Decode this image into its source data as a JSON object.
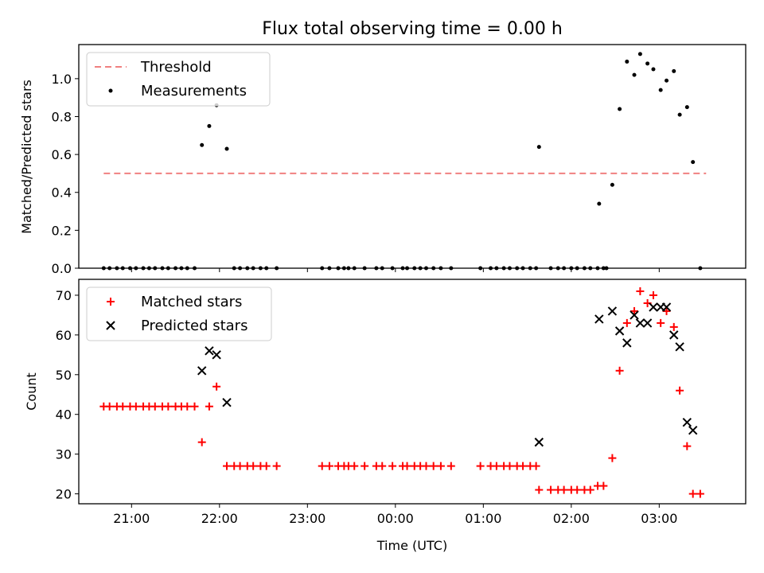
{
  "chart_data": [
    {
      "type": "scatter",
      "title": "Flux total observing time = 0.00 h",
      "xlabel": "",
      "ylabel": "Matched/Predicted stars",
      "xlim": [
        "20:24",
        "03:59"
      ],
      "ylim": [
        0,
        1.18
      ],
      "yticks": [
        "0.0",
        "0.2",
        "0.4",
        "0.6",
        "0.8",
        "1.0"
      ],
      "legend_position": "top-left",
      "threshold": {
        "name": "Threshold",
        "value": 0.5,
        "x_start": "20:41",
        "x_end": "03:32",
        "color": "#f08080",
        "style": "dashed"
      },
      "series": [
        {
          "name": "Measurements",
          "color": "#000000",
          "marker": "dot",
          "points": [
            [
              "20:41",
              0
            ],
            [
              "20:45",
              0
            ],
            [
              "20:50",
              0
            ],
            [
              "20:54",
              0
            ],
            [
              "20:59",
              0
            ],
            [
              "21:03",
              0
            ],
            [
              "21:08",
              0
            ],
            [
              "21:12",
              0
            ],
            [
              "21:16",
              0
            ],
            [
              "21:21",
              0
            ],
            [
              "21:25",
              0
            ],
            [
              "21:30",
              0
            ],
            [
              "21:34",
              0
            ],
            [
              "21:38",
              0
            ],
            [
              "21:43",
              0
            ],
            [
              "21:48",
              0.65
            ],
            [
              "21:53",
              0.75
            ],
            [
              "21:58",
              0.86
            ],
            [
              "22:05",
              0.63
            ],
            [
              "22:10",
              0
            ],
            [
              "22:14",
              0
            ],
            [
              "22:19",
              0
            ],
            [
              "22:23",
              0
            ],
            [
              "22:28",
              0
            ],
            [
              "22:32",
              0
            ],
            [
              "22:39",
              0
            ],
            [
              "23:10",
              0
            ],
            [
              "23:15",
              0
            ],
            [
              "23:21",
              0
            ],
            [
              "23:25",
              0
            ],
            [
              "23:28",
              0
            ],
            [
              "23:32",
              0
            ],
            [
              "23:39",
              0
            ],
            [
              "23:47",
              0
            ],
            [
              "23:51",
              0
            ],
            [
              "23:58",
              0
            ],
            [
              "00:05",
              0
            ],
            [
              "00:08",
              0
            ],
            [
              "00:13",
              0
            ],
            [
              "00:17",
              0
            ],
            [
              "00:21",
              0
            ],
            [
              "00:26",
              0
            ],
            [
              "00:31",
              0
            ],
            [
              "00:38",
              0
            ],
            [
              "00:58",
              0
            ],
            [
              "01:05",
              0
            ],
            [
              "01:09",
              0
            ],
            [
              "01:14",
              0
            ],
            [
              "01:18",
              0
            ],
            [
              "01:23",
              0
            ],
            [
              "01:27",
              0
            ],
            [
              "01:32",
              0
            ],
            [
              "01:36",
              0
            ],
            [
              "01:38",
              0.64
            ],
            [
              "01:46",
              0
            ],
            [
              "01:51",
              0
            ],
            [
              "01:55",
              0
            ],
            [
              "02:00",
              0
            ],
            [
              "02:04",
              0
            ],
            [
              "02:09",
              0
            ],
            [
              "02:13",
              0
            ],
            [
              "02:18",
              0
            ],
            [
              "02:22",
              0
            ],
            [
              "02:19",
              0.34
            ],
            [
              "02:24",
              0
            ],
            [
              "02:28",
              0.44
            ],
            [
              "02:33",
              0.84
            ],
            [
              "02:38",
              1.09
            ],
            [
              "02:43",
              1.02
            ],
            [
              "02:47",
              1.13
            ],
            [
              "02:52",
              1.08
            ],
            [
              "02:56",
              1.05
            ],
            [
              "03:01",
              0.94
            ],
            [
              "03:05",
              0.99
            ],
            [
              "03:10",
              1.04
            ],
            [
              "03:14",
              0.81
            ],
            [
              "03:19",
              0.85
            ],
            [
              "03:23",
              0.56
            ],
            [
              "03:28",
              0
            ]
          ]
        }
      ]
    },
    {
      "type": "scatter",
      "title": "",
      "xlabel": "Time (UTC)",
      "ylabel": "Count",
      "xlim": [
        "20:24",
        "03:59"
      ],
      "ylim": [
        17.5,
        74
      ],
      "yticks": [
        "20",
        "30",
        "40",
        "50",
        "60",
        "70"
      ],
      "xticks": [
        "21:00",
        "22:00",
        "23:00",
        "00:00",
        "01:00",
        "02:00",
        "03:00"
      ],
      "legend_position": "top-left",
      "series": [
        {
          "name": "Matched stars",
          "color": "#ff0000",
          "marker": "plus",
          "points": [
            [
              "20:41",
              42
            ],
            [
              "20:45",
              42
            ],
            [
              "20:50",
              42
            ],
            [
              "20:54",
              42
            ],
            [
              "20:59",
              42
            ],
            [
              "21:03",
              42
            ],
            [
              "21:08",
              42
            ],
            [
              "21:12",
              42
            ],
            [
              "21:16",
              42
            ],
            [
              "21:21",
              42
            ],
            [
              "21:25",
              42
            ],
            [
              "21:30",
              42
            ],
            [
              "21:34",
              42
            ],
            [
              "21:38",
              42
            ],
            [
              "21:43",
              42
            ],
            [
              "21:48",
              33
            ],
            [
              "21:53",
              42
            ],
            [
              "21:58",
              47
            ],
            [
              "22:05",
              27
            ],
            [
              "22:10",
              27
            ],
            [
              "22:14",
              27
            ],
            [
              "22:19",
              27
            ],
            [
              "22:23",
              27
            ],
            [
              "22:28",
              27
            ],
            [
              "22:32",
              27
            ],
            [
              "22:39",
              27
            ],
            [
              "23:10",
              27
            ],
            [
              "23:15",
              27
            ],
            [
              "23:21",
              27
            ],
            [
              "23:25",
              27
            ],
            [
              "23:28",
              27
            ],
            [
              "23:32",
              27
            ],
            [
              "23:39",
              27
            ],
            [
              "23:47",
              27
            ],
            [
              "23:51",
              27
            ],
            [
              "23:58",
              27
            ],
            [
              "00:05",
              27
            ],
            [
              "00:08",
              27
            ],
            [
              "00:13",
              27
            ],
            [
              "00:17",
              27
            ],
            [
              "00:21",
              27
            ],
            [
              "00:26",
              27
            ],
            [
              "00:31",
              27
            ],
            [
              "00:38",
              27
            ],
            [
              "00:58",
              27
            ],
            [
              "01:05",
              27
            ],
            [
              "01:09",
              27
            ],
            [
              "01:14",
              27
            ],
            [
              "01:18",
              27
            ],
            [
              "01:23",
              27
            ],
            [
              "01:27",
              27
            ],
            [
              "01:32",
              27
            ],
            [
              "01:36",
              27
            ],
            [
              "01:38",
              21
            ],
            [
              "01:46",
              21
            ],
            [
              "01:51",
              21
            ],
            [
              "01:55",
              21
            ],
            [
              "02:00",
              21
            ],
            [
              "02:04",
              21
            ],
            [
              "02:09",
              21
            ],
            [
              "02:13",
              21
            ],
            [
              "02:18",
              22
            ],
            [
              "02:22",
              22
            ],
            [
              "02:28",
              29
            ],
            [
              "02:33",
              51
            ],
            [
              "02:38",
              63
            ],
            [
              "02:43",
              66
            ],
            [
              "02:47",
              71
            ],
            [
              "02:52",
              68
            ],
            [
              "02:56",
              70
            ],
            [
              "03:01",
              63
            ],
            [
              "03:05",
              66
            ],
            [
              "03:10",
              62
            ],
            [
              "03:14",
              46
            ],
            [
              "03:19",
              32
            ],
            [
              "03:23",
              20
            ],
            [
              "03:28",
              20
            ]
          ]
        },
        {
          "name": "Predicted stars",
          "color": "#000000",
          "marker": "x",
          "points": [
            [
              "21:48",
              51
            ],
            [
              "21:53",
              56
            ],
            [
              "21:58",
              55
            ],
            [
              "22:05",
              43
            ],
            [
              "01:38",
              33
            ],
            [
              "02:19",
              64
            ],
            [
              "02:28",
              66
            ],
            [
              "02:33",
              61
            ],
            [
              "02:38",
              58
            ],
            [
              "02:43",
              65
            ],
            [
              "02:47",
              63
            ],
            [
              "02:52",
              63
            ],
            [
              "02:56",
              67
            ],
            [
              "03:01",
              67
            ],
            [
              "03:05",
              67
            ],
            [
              "03:10",
              60
            ],
            [
              "03:14",
              57
            ],
            [
              "03:19",
              38
            ],
            [
              "03:23",
              36
            ]
          ]
        }
      ]
    }
  ]
}
